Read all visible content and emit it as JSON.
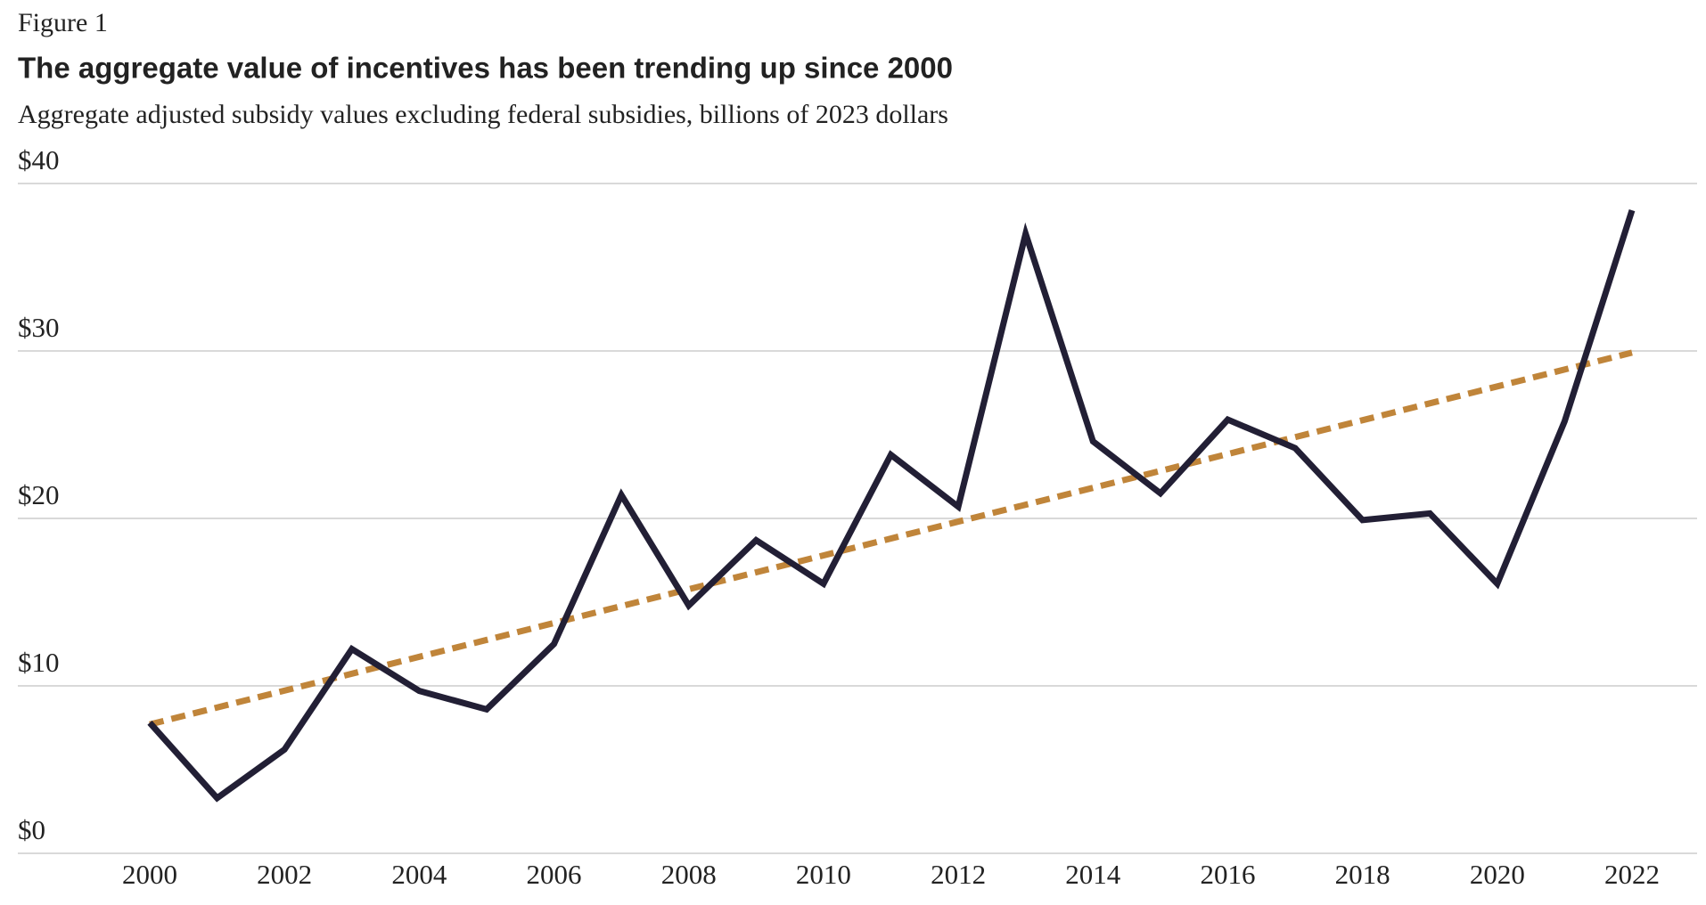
{
  "chart_data": {
    "type": "line",
    "figure_label": "Figure 1",
    "title": "The aggregate value of incentives has been trending up since 2000",
    "subtitle": "Aggregate adjusted subsidy values excluding federal subsidies, billions of 2023 dollars",
    "x": [
      2000,
      2001,
      2002,
      2003,
      2004,
      2005,
      2006,
      2007,
      2008,
      2009,
      2010,
      2011,
      2012,
      2013,
      2014,
      2015,
      2016,
      2017,
      2018,
      2019,
      2020,
      2021,
      2022
    ],
    "values": [
      7.8,
      3.3,
      6.2,
      12.2,
      9.7,
      8.6,
      12.5,
      21.4,
      14.8,
      18.7,
      16.1,
      23.8,
      20.7,
      37.0,
      24.6,
      21.5,
      25.9,
      24.2,
      19.9,
      20.3,
      16.1,
      25.8,
      38.4
    ],
    "color": "#221f35",
    "trend": {
      "x": [
        2000,
        2022
      ],
      "values": [
        7.7,
        29.9
      ],
      "color": "#c0853a"
    },
    "xlim": [
      2000,
      2022
    ],
    "xticks": [
      2000,
      2002,
      2004,
      2006,
      2008,
      2010,
      2012,
      2014,
      2016,
      2018,
      2020,
      2022
    ],
    "ylim": [
      0,
      40
    ],
    "yticks": [
      {
        "value": 0,
        "label": "$0"
      },
      {
        "value": 10,
        "label": "$10"
      },
      {
        "value": 20,
        "label": "$20"
      },
      {
        "value": 30,
        "label": "$30"
      },
      {
        "value": 40,
        "label": "$40"
      }
    ],
    "grid": true
  }
}
